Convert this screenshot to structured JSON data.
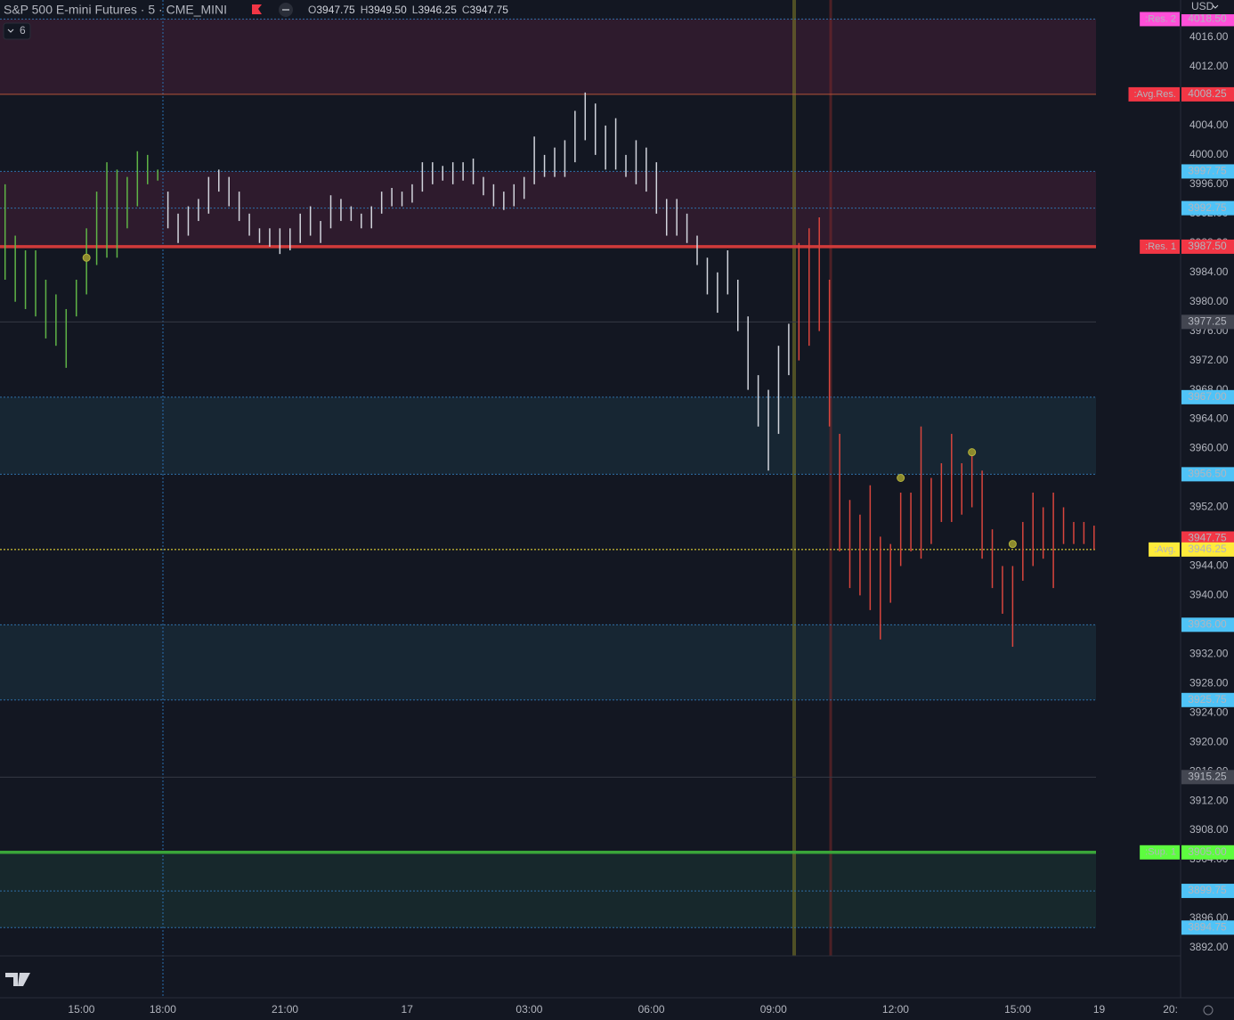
{
  "header": {
    "symbol": "S&P 500 E-mini Futures · 5 · CME_MINI",
    "ohlc": [
      {
        "key": "O",
        "value": "3947.75"
      },
      {
        "key": "H",
        "value": "3949.50"
      },
      {
        "key": "L",
        "value": "3946.25"
      },
      {
        "key": "C",
        "value": "3947.75"
      }
    ],
    "indicators_count": "6",
    "currency": "USD"
  },
  "chart_data": {
    "type": "ohlc",
    "categories": [
      null,
      null,
      null,
      null,
      null,
      null,
      null,
      null,
      "15:00",
      null,
      null,
      null,
      null,
      null,
      null,
      null,
      "18:00",
      null,
      null,
      null,
      null,
      null,
      null,
      null,
      null,
      null,
      null,
      null,
      "21:00",
      null,
      null,
      null,
      null,
      null,
      null,
      null,
      null,
      null,
      null,
      null,
      "17",
      null,
      null,
      null,
      null,
      null,
      null,
      null,
      null,
      null,
      null,
      null,
      "03:00",
      null,
      null,
      null,
      null,
      null,
      null,
      null,
      null,
      null,
      null,
      null,
      "06:00",
      null,
      null,
      null,
      null,
      null,
      null,
      null,
      null,
      null,
      null,
      null,
      "09:00",
      null,
      null,
      null,
      null,
      null,
      null,
      null,
      null,
      null,
      null,
      null,
      "12:00",
      null,
      null,
      null,
      null,
      null,
      null,
      null,
      null,
      null,
      null,
      null,
      "15:00",
      null,
      null,
      null,
      null,
      null,
      null,
      null,
      "19",
      null,
      null,
      null,
      null,
      null,
      null,
      "20:"
    ],
    "high": [
      3996,
      3989,
      3987,
      3987,
      3983,
      3981,
      3979,
      3983,
      3990,
      3995,
      3999,
      3998,
      3997,
      4000.5,
      4000,
      3998,
      3995,
      3992,
      3993,
      3994,
      3997,
      3998,
      3997,
      3995,
      3992,
      3990,
      3990,
      3990,
      3990,
      3992,
      3993,
      3991,
      3994.5,
      3994,
      3993,
      3992,
      3993,
      3995,
      3995.5,
      3995,
      3996,
      3999,
      3999,
      3998.5,
      3999,
      3999,
      3999.5,
      3997,
      3996,
      3995,
      3996,
      3997,
      4002.5,
      4000,
      4001,
      4002,
      4006,
      4008.5,
      4007,
      4004,
      4005,
      4000,
      4002,
      4001,
      3999,
      3994,
      3994,
      3992,
      3989,
      3986,
      3984,
      3987,
      3983,
      3978,
      3970,
      3968,
      3974,
      3977,
      3988,
      3990,
      3991.5,
      3983,
      3962,
      3953,
      3951,
      3955,
      3948,
      3947,
      3954,
      3954,
      3963,
      3956,
      3958,
      3962,
      3958,
      3960,
      3957,
      3949,
      3944,
      3944,
      3950,
      3954,
      3952,
      3954,
      3952,
      3950,
      3950,
      3949.5,
      null,
      null,
      null,
      null,
      null,
      null,
      null,
      null
    ],
    "low": [
      3983,
      3980,
      3979,
      3978,
      3975,
      3974,
      3971,
      3978,
      3981,
      3985,
      3986,
      3986,
      3990,
      3993,
      3996,
      3996.5,
      3990,
      3988,
      3989,
      3991,
      3992,
      3995,
      3993,
      3991,
      3989,
      3988,
      3987.5,
      3986.5,
      3987,
      3988,
      3989,
      3988,
      3990,
      3991,
      3991,
      3990,
      3990,
      3992,
      3993,
      3993,
      3993.5,
      3995,
      3996,
      3996.5,
      3996,
      3996.5,
      3996,
      3994.5,
      3993,
      3992.5,
      3993,
      3994,
      3996,
      3997,
      3997,
      3997,
      3999,
      4002,
      4000,
      3998,
      3998,
      3997,
      3996,
      3995,
      3992,
      3989,
      3989,
      3988,
      3985,
      3981,
      3978.5,
      3981,
      3976,
      3968,
      3963,
      3957,
      3962,
      3970,
      3972,
      3974,
      3976,
      3963,
      3946,
      3941,
      3940,
      3938,
      3934,
      3939,
      3944,
      3946,
      3945,
      3947,
      3950,
      3950,
      3951,
      3952,
      3945,
      3941,
      3937.5,
      3933,
      3942,
      3944,
      3945,
      3941,
      3947,
      3947,
      3947,
      3946.25,
      null,
      null,
      null,
      null,
      null,
      null,
      null,
      null
    ],
    "bar_colors": [
      "#5fb446",
      "#5fb446",
      "#5fb446",
      "#5fb446",
      "#5fb446",
      "#5fb446",
      "#5fb446",
      "#5fb446",
      "#5fb446",
      "#5fb446",
      "#5fb446",
      "#5fb446",
      "#5fb446",
      "#5fb446",
      "#5fb446",
      "#5fb446",
      "#d1d4dc",
      "#d1d4dc",
      "#d1d4dc",
      "#d1d4dc",
      "#d1d4dc",
      "#d1d4dc",
      "#d1d4dc",
      "#d1d4dc",
      "#d1d4dc",
      "#d1d4dc",
      "#d1d4dc",
      "#d1d4dc",
      "#d1d4dc",
      "#d1d4dc",
      "#d1d4dc",
      "#d1d4dc",
      "#d1d4dc",
      "#d1d4dc",
      "#d1d4dc",
      "#d1d4dc",
      "#d1d4dc",
      "#d1d4dc",
      "#d1d4dc",
      "#d1d4dc",
      "#d1d4dc",
      "#d1d4dc",
      "#d1d4dc",
      "#d1d4dc",
      "#d1d4dc",
      "#d1d4dc",
      "#d1d4dc",
      "#d1d4dc",
      "#d1d4dc",
      "#d1d4dc",
      "#d1d4dc",
      "#d1d4dc",
      "#d1d4dc",
      "#d1d4dc",
      "#d1d4dc",
      "#d1d4dc",
      "#d1d4dc",
      "#d1d4dc",
      "#d1d4dc",
      "#d1d4dc",
      "#d1d4dc",
      "#d1d4dc",
      "#d1d4dc",
      "#d1d4dc",
      "#d1d4dc",
      "#d1d4dc",
      "#d1d4dc",
      "#d1d4dc",
      "#d1d4dc",
      "#d1d4dc",
      "#d1d4dc",
      "#d1d4dc",
      "#d1d4dc",
      "#d1d4dc",
      "#d1d4dc",
      "#d1d4dc",
      "#d1d4dc",
      "#d1d4dc",
      "#d9453d",
      "#d9453d",
      "#d9453d",
      "#d9453d",
      "#d9453d",
      "#d9453d",
      "#d9453d",
      "#d9453d",
      "#d9453d",
      "#d9453d",
      "#d9453d",
      "#d9453d",
      "#d9453d",
      "#d9453d",
      "#d9453d",
      "#d9453d",
      "#d9453d",
      "#d9453d",
      "#d9453d",
      "#d9453d",
      "#d9453d",
      "#d9453d",
      "#d9453d",
      "#d9453d",
      "#d9453d",
      "#d9453d",
      "#d9453d",
      "#d9453d",
      "#d9453d",
      "#d9453d",
      null,
      null,
      null,
      null,
      null,
      null,
      null,
      null
    ],
    "markers": {
      "color": "#8c8a2e",
      "values": [
        null,
        null,
        null,
        null,
        null,
        null,
        null,
        null,
        3986,
        null,
        null,
        null,
        null,
        null,
        null,
        null,
        null,
        null,
        null,
        null,
        null,
        null,
        null,
        null,
        null,
        null,
        null,
        null,
        null,
        null,
        null,
        null,
        null,
        null,
        null,
        null,
        null,
        null,
        null,
        null,
        null,
        null,
        null,
        null,
        null,
        null,
        null,
        null,
        null,
        null,
        null,
        null,
        null,
        null,
        null,
        null,
        null,
        null,
        null,
        null,
        null,
        null,
        null,
        null,
        null,
        null,
        null,
        null,
        null,
        null,
        null,
        null,
        null,
        null,
        null,
        null,
        null,
        null,
        null,
        null,
        null,
        null,
        null,
        null,
        null,
        null,
        null,
        null,
        3956,
        null,
        null,
        null,
        null,
        null,
        null,
        3959.5,
        null,
        null,
        null,
        3947,
        null,
        null,
        null,
        null,
        null,
        null,
        null,
        null,
        null,
        null,
        null,
        null,
        null,
        null,
        null,
        null
      ]
    },
    "ylim": [
      3890.9,
      4021.1
    ],
    "yticks": [
      {
        "value": 4016,
        "label": "4016.00"
      },
      {
        "value": 4012,
        "label": "4012.00"
      },
      {
        "value": 4008,
        "label": "4008.00"
      },
      {
        "value": 4004,
        "label": "4004.00"
      },
      {
        "value": 4000,
        "label": "4000.00"
      },
      {
        "value": 3996,
        "label": "3996.00"
      },
      {
        "value": 3992,
        "label": "3992.00"
      },
      {
        "value": 3988,
        "label": "3988.00"
      },
      {
        "value": 3984,
        "label": "3984.00"
      },
      {
        "value": 3980,
        "label": "3980.00"
      },
      {
        "value": 3976,
        "label": "3976.00"
      },
      {
        "value": 3972,
        "label": "3972.00"
      },
      {
        "value": 3968,
        "label": "3968.00"
      },
      {
        "value": 3964,
        "label": "3964.00"
      },
      {
        "value": 3960,
        "label": "3960.00"
      },
      {
        "value": 3956,
        "label": "3956.00"
      },
      {
        "value": 3952,
        "label": "3952.00"
      },
      {
        "value": 3948,
        "label": "3948.00"
      },
      {
        "value": 3944,
        "label": "3944.00"
      },
      {
        "value": 3940,
        "label": "3940.00"
      },
      {
        "value": 3936,
        "label": "3936.00"
      },
      {
        "value": 3932,
        "label": "3932.00"
      },
      {
        "value": 3928,
        "label": "3928.00"
      },
      {
        "value": 3924,
        "label": "3924.00"
      },
      {
        "value": 3920,
        "label": "3920.00"
      },
      {
        "value": 3916,
        "label": "3916.00"
      },
      {
        "value": 3912,
        "label": "3912.00"
      },
      {
        "value": 3908,
        "label": "3908.00"
      },
      {
        "value": 3904,
        "label": "3904.00"
      },
      {
        "value": 3900,
        "label": "3900.00"
      },
      {
        "value": 3896,
        "label": "3896.00"
      },
      {
        "value": 3892,
        "label": "3892.00"
      }
    ],
    "zones": [
      {
        "from": 4018.5,
        "to": 4008.25,
        "color": "rgba(120,40,75,0.28)"
      },
      {
        "from": 3997.75,
        "to": 3987.5,
        "color": "rgba(120,40,75,0.28)"
      },
      {
        "from": 3967,
        "to": 3956.5,
        "color": "rgba(40,95,115,0.22)"
      },
      {
        "from": 3936,
        "to": 3925.75,
        "color": "rgba(40,95,115,0.22)"
      },
      {
        "from": 3905,
        "to": 3894.75,
        "color": "rgba(40,110,85,0.2)"
      }
    ],
    "price_lines": [
      {
        "value": 4018.5,
        "label": "4018.50",
        "tag": ":Res. 2",
        "color": "#ff4fd8",
        "text_color": "#6a0f5a",
        "line_color": "#2f6fa8",
        "style": "dotted"
      },
      {
        "value": 4008.25,
        "label": "4008.25",
        "tag": ":Avg.Res.",
        "color": "#f23645",
        "text_color": "#ffffff",
        "line_color": "#b5533a",
        "style": "solid"
      },
      {
        "value": 3997.75,
        "label": "3997.75",
        "color": "#4fc3f7",
        "text_color": "#0b3a66",
        "line_color": "#2f6fa8",
        "style": "dotted"
      },
      {
        "value": 3992.75,
        "label": "3992.75",
        "color": "#4fc3f7",
        "text_color": "#0b3a66",
        "line_color": "#2f6fa8",
        "style": "dotted"
      },
      {
        "value": 3987.5,
        "label": "3987.50",
        "tag": ":Res. 1",
        "color": "#f23645",
        "text_color": "#ffffff",
        "line_color": "#d03a3a",
        "style": "thick"
      },
      {
        "value": 3977.25,
        "label": "3977.25",
        "color": "#434651",
        "text_color": "#ffffff",
        "line_color": "#363a45",
        "style": "solid"
      },
      {
        "value": 3967,
        "label": "3967.00",
        "color": "#4fc3f7",
        "text_color": "#0b3a66",
        "line_color": "#2f6fa8",
        "style": "dotted"
      },
      {
        "value": 3956.5,
        "label": "3956.50",
        "color": "#4fc3f7",
        "text_color": "#0b3a66",
        "line_color": "#2f6fa8",
        "style": "dotted"
      },
      {
        "value": 3947.75,
        "label": "3947.75",
        "color": "#f23645",
        "text_color": "#ffffff",
        "line_color": null,
        "style": "none"
      },
      {
        "value": 3946.25,
        "label": "3946.25",
        "tag": ":Avg.",
        "color": "#ffeb3b",
        "text_color": "#000000",
        "line_color": "#ffeb3b",
        "style": "dotted"
      },
      {
        "value": 3936,
        "label": "3936.00",
        "color": "#4fc3f7",
        "text_color": "#0b3a66",
        "line_color": "#2f6fa8",
        "style": "dotted"
      },
      {
        "value": 3925.75,
        "label": "3925.75",
        "color": "#4fc3f7",
        "text_color": "#0b3a66",
        "line_color": "#2f6fa8",
        "style": "dotted"
      },
      {
        "value": 3915.25,
        "label": "3915.25",
        "color": "#434651",
        "text_color": "#ffffff",
        "line_color": "#363a45",
        "style": "solid"
      },
      {
        "value": 3905,
        "label": "3905.00",
        "tag": ":Sup. 1",
        "color": "#5dfc3f",
        "text_color": "#000000",
        "line_color": "#3aa53a",
        "style": "thick"
      },
      {
        "value": 3899.75,
        "label": "3899.75",
        "color": "#4fc3f7",
        "text_color": "#0b3a66",
        "line_color": "#2f6fa8",
        "style": "dotted"
      },
      {
        "value": 3894.75,
        "label": "3894.75",
        "color": "#4fc3f7",
        "text_color": "#0b3a66",
        "line_color": "#2f6fa8",
        "style": "dotted"
      }
    ]
  }
}
